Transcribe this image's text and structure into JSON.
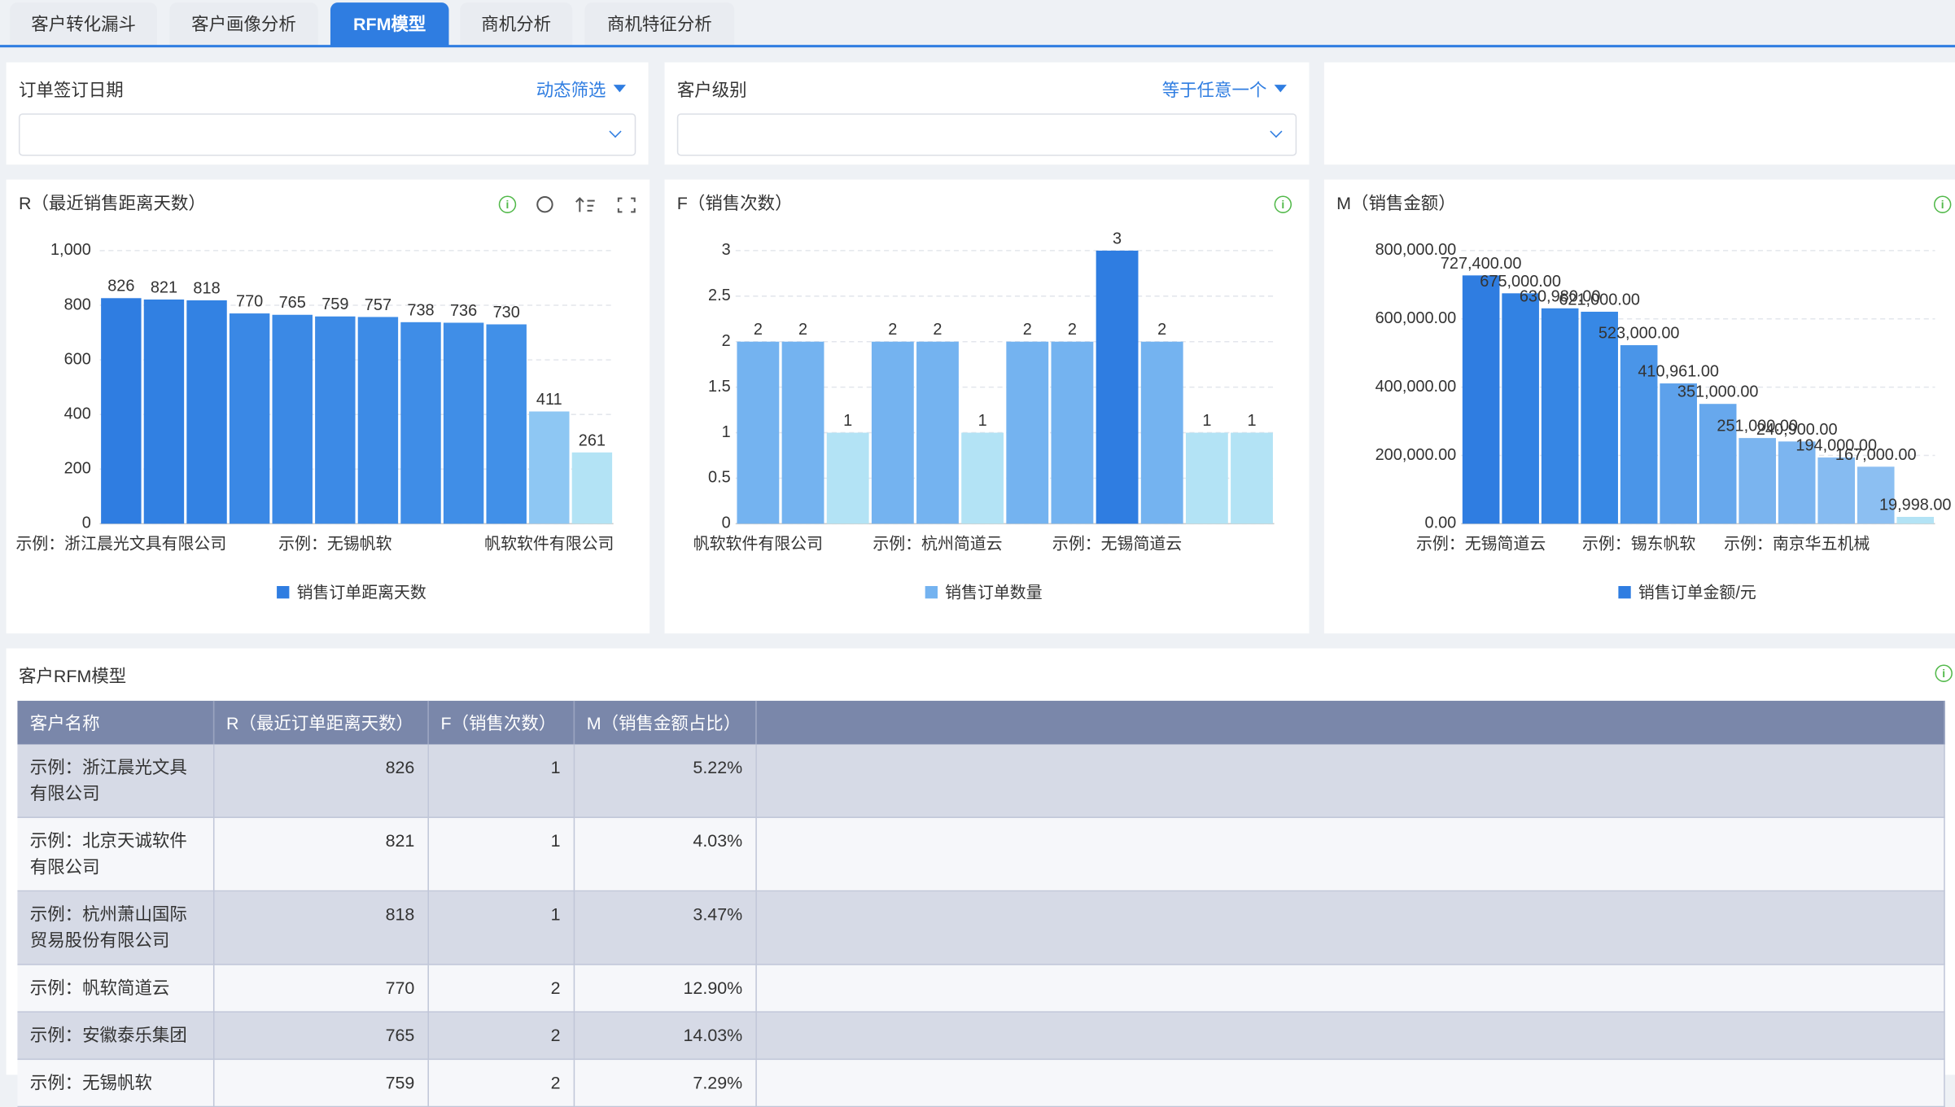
{
  "tabs": [
    "客户转化漏斗",
    "客户画像分析",
    "RFM模型",
    "商机分析",
    "商机特征分析"
  ],
  "filters": [
    {
      "label": "订单签订日期",
      "mode": "动态筛选"
    },
    {
      "label": "客户级别",
      "mode": "等于任意一个"
    }
  ],
  "chart_data": [
    {
      "type": "bar",
      "title": "R（最近销售距离天数）",
      "categories": [
        "示例：浙江晨光文具有限公司",
        null,
        null,
        null,
        null,
        "示例：无锡帆软",
        null,
        null,
        null,
        null,
        "帆软软件有限公司",
        null
      ],
      "series": [
        {
          "name": "销售订单距离天数",
          "color": "#2f7de1",
          "values": [
            826,
            821,
            818,
            770,
            765,
            759,
            757,
            738,
            736,
            730,
            411,
            261
          ],
          "bar_colors": [
            "#2f7de1",
            "#3180e2",
            "#3382e3",
            "#3a88e5",
            "#3b89e5",
            "#3c8ae6",
            "#3d8be6",
            "#3f8de7",
            "#408ee7",
            "#4190e8",
            "#8ec7f3",
            "#b3e3f5"
          ]
        }
      ],
      "ylim": [
        0,
        1000
      ],
      "yticks": [
        0,
        200,
        400,
        600,
        800,
        {
          "value": 1000,
          "label": "1,000"
        }
      ],
      "grid": true
    },
    {
      "type": "bar",
      "title": "F（销售次数）",
      "categories": [
        "帆软软件有限公司",
        null,
        null,
        null,
        "示例：杭州简道云",
        null,
        null,
        null,
        "示例：无锡简道云",
        null,
        null,
        null
      ],
      "series": [
        {
          "name": "销售订单数量",
          "color": "#74b3f0",
          "values": [
            2,
            2,
            1,
            2,
            2,
            1,
            2,
            2,
            3,
            2,
            1,
            1
          ],
          "bar_colors": [
            "#74b3f0",
            "#74b3f0",
            "#b3e3f5",
            "#74b3f0",
            "#74b3f0",
            "#b3e3f5",
            "#74b3f0",
            "#74b3f0",
            "#2f7de1",
            "#74b3f0",
            "#b3e3f5",
            "#b3e3f5"
          ]
        }
      ],
      "ylim": [
        0,
        3
      ],
      "yticks": [
        0,
        0.5,
        1,
        1.5,
        2,
        2.5,
        3
      ],
      "grid": true
    },
    {
      "type": "bar",
      "title": "M（销售金额）",
      "categories": [
        "示例：无锡简道云",
        null,
        null,
        null,
        "示例：锡东帆软",
        null,
        null,
        null,
        "示例：南京华五机械",
        null,
        null,
        null
      ],
      "series": [
        {
          "name": "销售订单金额/元",
          "color": "#2f7de1",
          "values": [
            727400,
            675000,
            630980,
            621000,
            523000,
            410961,
            351000,
            251000,
            240900,
            194000,
            167000,
            19998
          ],
          "value_labels": [
            "727,400.00",
            "675,000.00",
            "630,980.00",
            "621,000.00",
            "523,000.00",
            "410,961.00",
            "351,000.00",
            "251,000.00",
            "240,900.00",
            "194,000.00",
            "167,000.00",
            "19,998.00"
          ],
          "bar_colors": [
            "#2f7de1",
            "#3282e3",
            "#3686e4",
            "#3788e5",
            "#4a95e8",
            "#5da1eb",
            "#67a8ed",
            "#7ab4ef",
            "#7cb5f0",
            "#86bbf1",
            "#8cbff2",
            "#b3e3f5"
          ]
        }
      ],
      "ylim": [
        0,
        800000
      ],
      "yticks": [
        {
          "value": 0,
          "label": "0.00"
        },
        {
          "value": 200000,
          "label": "200,000.00"
        },
        {
          "value": 400000,
          "label": "400,000.00"
        },
        {
          "value": 600000,
          "label": "600,000.00"
        },
        {
          "value": 800000,
          "label": "800,000.00"
        }
      ],
      "grid": true
    }
  ],
  "table": {
    "title": "客户RFM模型",
    "columns": [
      "客户名称",
      "R（最近订单距离天数）",
      "F（销售次数）",
      "M（销售金额占比）"
    ],
    "rows": [
      [
        "示例：浙江晨光文具有限公司",
        826,
        1,
        "5.22%"
      ],
      [
        "示例：北京天诚软件有限公司",
        821,
        1,
        "4.03%"
      ],
      [
        "示例：杭州萧山国际贸易股份有限公司",
        818,
        1,
        "3.47%"
      ],
      [
        "示例：帆软简道云",
        770,
        2,
        "12.90%"
      ],
      [
        "示例：安徽泰乐集团",
        765,
        2,
        "14.03%"
      ],
      [
        "示例：无锡帆软",
        759,
        2,
        "7.29%"
      ]
    ]
  }
}
